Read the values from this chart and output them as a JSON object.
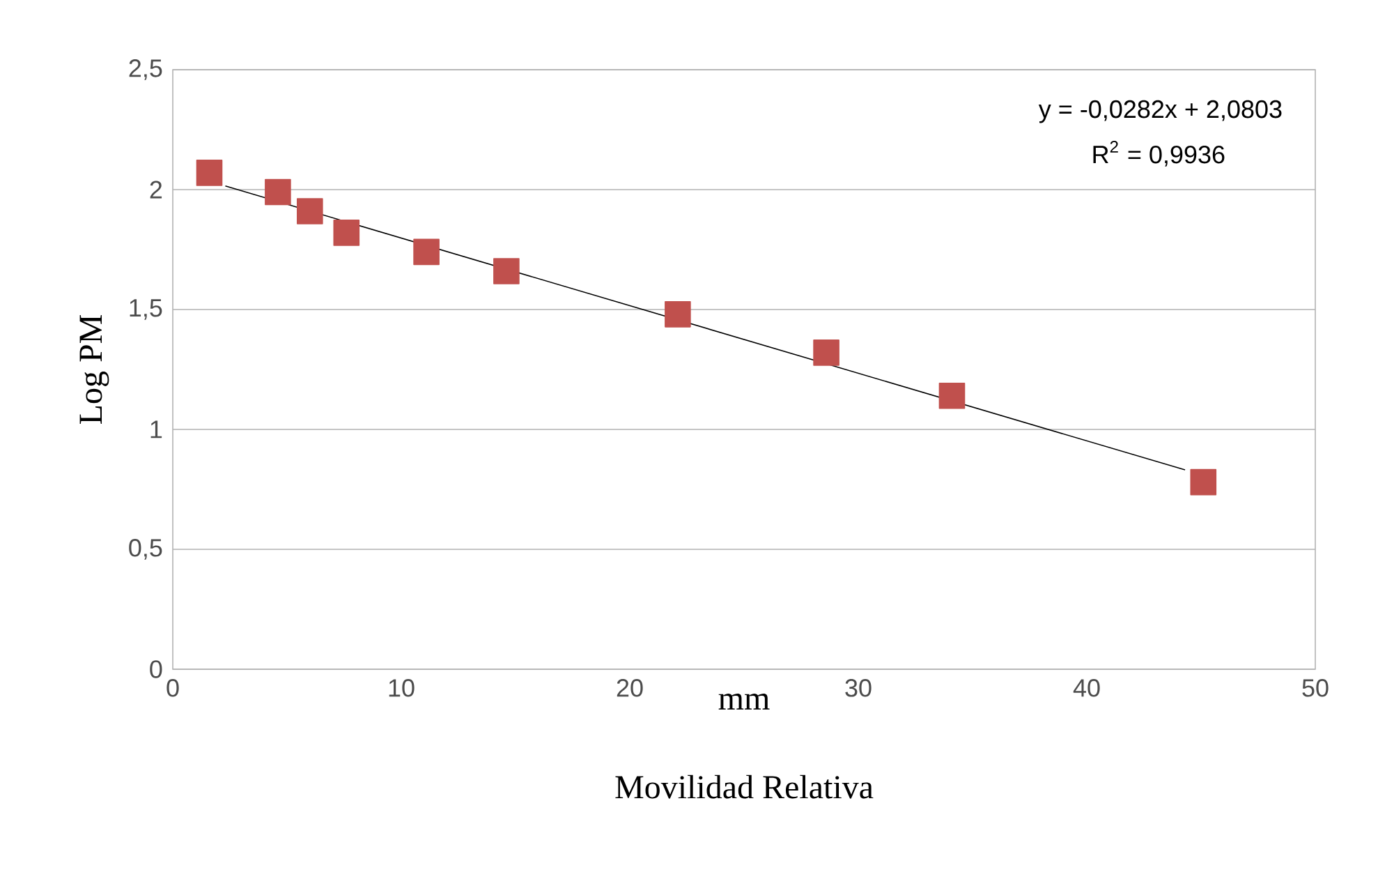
{
  "chart_data": {
    "type": "scatter",
    "xlabel": "mm",
    "ylabel": "Log PM",
    "annotations": [
      "y = -0,0282x + 2,0803",
      "R$^{2}$ = 0,9936",
      "Movilidad Relativa"
    ],
    "xlim": [
      0,
      50
    ],
    "xticks": [
      0,
      10,
      20,
      30,
      40,
      50
    ],
    "ylim": [
      0,
      2.5
    ],
    "yticks": [
      0,
      {
        "value": 0.5,
        "label": "0,5"
      },
      1,
      {
        "value": 1.5,
        "label": "1,5"
      },
      2,
      {
        "value": 2.5,
        "label": "2,5"
      }
    ],
    "grid": "y",
    "series": [
      {
        "type": "scatter",
        "marker": "square",
        "color": "#c0504d",
        "x": [
          1.6,
          4.6,
          6.0,
          7.6,
          11.1,
          14.6,
          22.1,
          28.6,
          34.1,
          45.1
        ],
        "values": [
          2.07,
          1.99,
          1.91,
          1.82,
          1.74,
          1.66,
          1.48,
          1.32,
          1.14,
          0.78
        ]
      },
      {
        "type": "line",
        "marker": "none",
        "line_style": "solid",
        "color": "#000000",
        "x": [
          2.3,
          44.3
        ],
        "values": [
          2.015,
          0.831
        ]
      }
    ]
  }
}
